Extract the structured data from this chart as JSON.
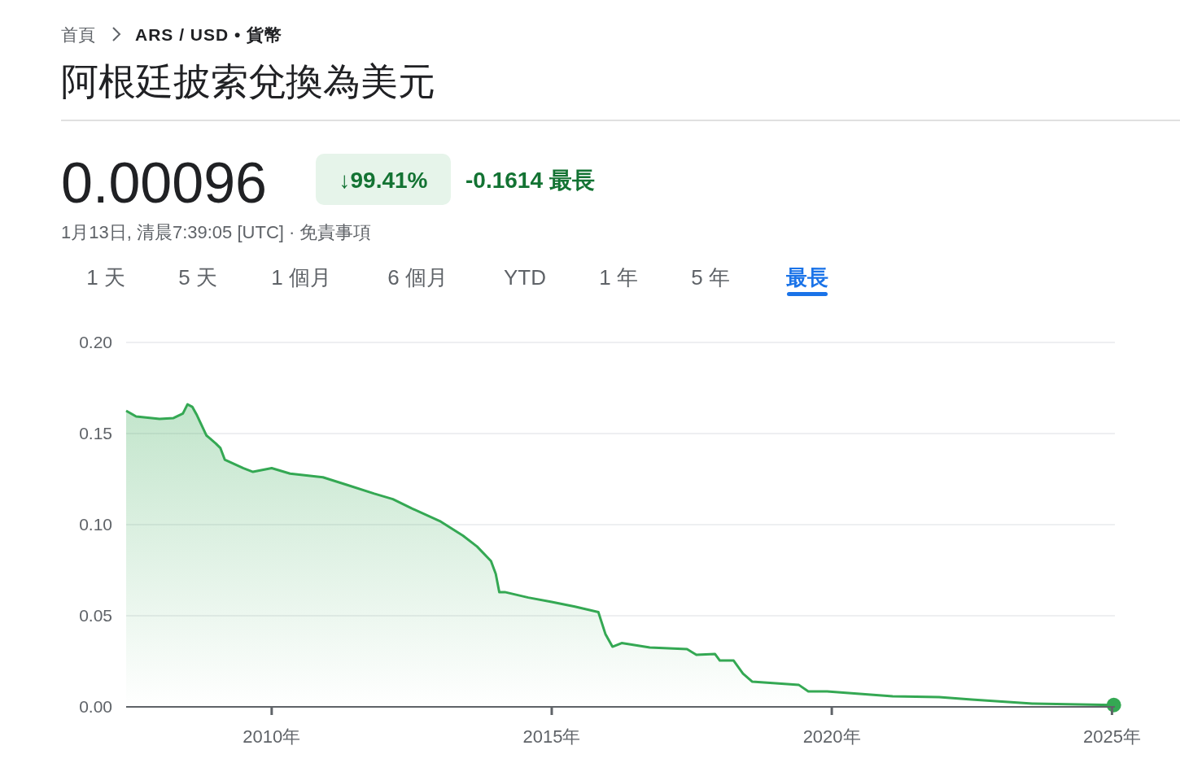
{
  "chart_data": {
    "type": "area",
    "title": "阿根廷披索兌換為美元",
    "annotations": [
      "首頁",
      "ARS / USD • 貨幣",
      "0.00096",
      "↓99.41%",
      "-0.1614 最長",
      "1月13日, 清晨7:39:05 [UTC] · 免責事項",
      "1 天",
      "5 天",
      "1 個月",
      "6 個月",
      "YTD",
      "1 年",
      "5 年",
      "最長"
    ],
    "xlim": [
      "2007-05-28",
      "2025-01-20"
    ],
    "xticks": [
      {
        "value": "2010",
        "label": "2010年"
      },
      {
        "value": "2015",
        "label": "2015年"
      },
      {
        "value": "2020",
        "label": "2020年"
      },
      {
        "value": "2025",
        "label": "2025年"
      }
    ],
    "ylim": [
      0,
      0.2
    ],
    "yticks": [
      {
        "value": 0,
        "label": "0.00"
      },
      {
        "value": 0.05,
        "label": "0.05"
      },
      {
        "value": 0.1,
        "label": "0.10"
      },
      {
        "value": 0.15,
        "label": "0.15"
      },
      {
        "value": 0.2,
        "label": "0.20"
      }
    ],
    "grid": "y",
    "series": [
      {
        "color": "#34a853",
        "x": [
          "2007-05-28",
          "2007-08",
          "2008-01",
          "2008-04",
          "2008-06",
          "2008-07",
          "2008-08",
          "2008-09",
          "2008-11",
          "2009-01",
          "2009-02",
          "2009-03",
          "2009-07",
          "2009-09",
          "2010-01",
          "2010-05",
          "2010-12",
          "2011-05",
          "2011-11",
          "2012-03",
          "2012-07",
          "2013-01",
          "2013-06",
          "2013-09",
          "2013-12",
          "2014-01-01",
          "2014-01-24",
          "2014-03",
          "2014-08",
          "2015-01",
          "2015-06",
          "2015-11",
          "2015-12-17",
          "2016-02",
          "2016-04",
          "2016-10",
          "2017-03",
          "2017-06",
          "2017-08",
          "2017-12",
          "2018-01",
          "2018-04",
          "2018-06",
          "2018-08",
          "2019-01",
          "2019-06",
          "2019-08",
          "2019-12",
          "2020-07",
          "2021-02",
          "2021-12",
          "2022-07",
          "2023-08",
          "2024-06",
          "2025-01-13"
        ],
        "values": [
          0.1625,
          0.1594,
          0.158,
          0.1585,
          0.161,
          0.166,
          0.1647,
          0.16,
          0.149,
          0.1446,
          0.142,
          0.1357,
          0.131,
          0.129,
          0.131,
          0.128,
          0.126,
          0.122,
          0.117,
          0.114,
          0.109,
          0.102,
          0.094,
          0.088,
          0.08,
          0.073,
          0.063,
          0.063,
          0.06,
          0.0576,
          0.055,
          0.052,
          0.04,
          0.033,
          0.035,
          0.0326,
          0.032,
          0.0317,
          0.0286,
          0.029,
          0.0254,
          0.0254,
          0.0183,
          0.0138,
          0.013,
          0.012,
          0.0085,
          0.0085,
          0.0071,
          0.0058,
          0.0054,
          0.004,
          0.0018,
          0.0013,
          0.001
        ]
      },
      {
        "type": "scatter",
        "color": "#34a853",
        "marker": "circle",
        "x": [
          "2025-01-13"
        ],
        "values": [
          0.001
        ]
      }
    ]
  }
}
